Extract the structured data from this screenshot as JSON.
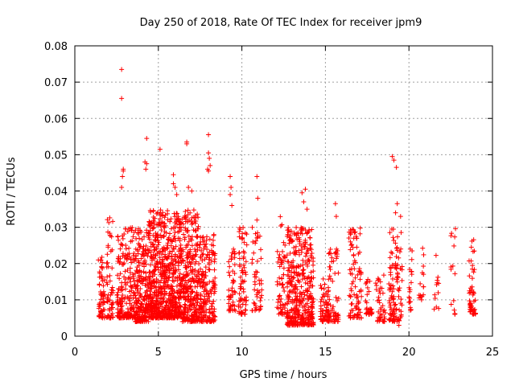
{
  "chart_data": {
    "type": "scatter",
    "title": "Day 250 of 2018, Rate Of TEC Index for receiver jpm9",
    "xlabel": "GPS time / hours",
    "ylabel": "ROTI / TECUs",
    "xlim": [
      0,
      25
    ],
    "ylim": [
      0,
      0.08
    ],
    "xticks": [
      "0",
      "5",
      "10",
      "15",
      "20",
      "25"
    ],
    "yticks": [
      "0",
      "0.01",
      "0.02",
      "0.03",
      "0.04",
      "0.05",
      "0.06",
      "0.07",
      "0.08"
    ],
    "grid": true,
    "marker": "+",
    "color": "#ff0000",
    "clusters": [
      {
        "x_start": 1.4,
        "x_end": 1.8,
        "y_low": 0.005,
        "y_high": 0.022,
        "count": 60
      },
      {
        "x_start": 1.9,
        "x_end": 2.3,
        "y_low": 0.005,
        "y_high": 0.033,
        "count": 60
      },
      {
        "x_start": 2.5,
        "x_end": 3.6,
        "y_low": 0.005,
        "y_high": 0.03,
        "count": 200
      },
      {
        "x_start": 3.6,
        "x_end": 4.4,
        "y_low": 0.004,
        "y_high": 0.03,
        "count": 220
      },
      {
        "x_start": 4.4,
        "x_end": 6.4,
        "y_low": 0.005,
        "y_high": 0.035,
        "count": 700
      },
      {
        "x_start": 6.4,
        "x_end": 7.4,
        "y_low": 0.004,
        "y_high": 0.035,
        "count": 300
      },
      {
        "x_start": 7.4,
        "x_end": 8.4,
        "y_low": 0.004,
        "y_high": 0.028,
        "count": 200
      },
      {
        "x_start": 9.2,
        "x_end": 9.6,
        "y_low": 0.007,
        "y_high": 0.025,
        "count": 50
      },
      {
        "x_start": 9.8,
        "x_end": 10.3,
        "y_low": 0.006,
        "y_high": 0.03,
        "count": 70
      },
      {
        "x_start": 10.6,
        "x_end": 11.2,
        "y_low": 0.007,
        "y_high": 0.03,
        "count": 50
      },
      {
        "x_start": 12.1,
        "x_end": 12.6,
        "y_low": 0.006,
        "y_high": 0.033,
        "count": 60
      },
      {
        "x_start": 12.7,
        "x_end": 14.3,
        "y_low": 0.003,
        "y_high": 0.03,
        "count": 400
      },
      {
        "x_start": 14.7,
        "x_end": 15.2,
        "y_low": 0.004,
        "y_high": 0.016,
        "count": 60
      },
      {
        "x_start": 15.2,
        "x_end": 15.8,
        "y_low": 0.004,
        "y_high": 0.025,
        "count": 60
      },
      {
        "x_start": 16.4,
        "x_end": 17.2,
        "y_low": 0.005,
        "y_high": 0.03,
        "count": 90
      },
      {
        "x_start": 17.4,
        "x_end": 17.8,
        "y_low": 0.006,
        "y_high": 0.016,
        "count": 30
      },
      {
        "x_start": 18.0,
        "x_end": 18.6,
        "y_low": 0.004,
        "y_high": 0.017,
        "count": 40
      },
      {
        "x_start": 18.8,
        "x_end": 19.6,
        "y_low": 0.004,
        "y_high": 0.03,
        "count": 110
      },
      {
        "x_start": 20.0,
        "x_end": 20.2,
        "y_low": 0.007,
        "y_high": 0.03,
        "count": 20
      },
      {
        "x_start": 20.6,
        "x_end": 20.9,
        "y_low": 0.01,
        "y_high": 0.031,
        "count": 15
      },
      {
        "x_start": 21.5,
        "x_end": 21.8,
        "y_low": 0.007,
        "y_high": 0.026,
        "count": 12
      },
      {
        "x_start": 22.5,
        "x_end": 22.8,
        "y_low": 0.006,
        "y_high": 0.031,
        "count": 14
      },
      {
        "x_start": 23.6,
        "x_end": 24.0,
        "y_low": 0.006,
        "y_high": 0.027,
        "count": 50
      }
    ],
    "outliers": [
      {
        "x": 2.8,
        "y": 0.0735
      },
      {
        "x": 2.8,
        "y": 0.0655
      },
      {
        "x": 2.9,
        "y": 0.046
      },
      {
        "x": 2.85,
        "y": 0.044
      },
      {
        "x": 2.8,
        "y": 0.041
      },
      {
        "x": 2.9,
        "y": 0.0455
      },
      {
        "x": 4.3,
        "y": 0.0545
      },
      {
        "x": 4.2,
        "y": 0.048
      },
      {
        "x": 4.25,
        "y": 0.046
      },
      {
        "x": 4.3,
        "y": 0.0475
      },
      {
        "x": 5.1,
        "y": 0.0515
      },
      {
        "x": 5.9,
        "y": 0.0445
      },
      {
        "x": 5.9,
        "y": 0.042
      },
      {
        "x": 6.0,
        "y": 0.041
      },
      {
        "x": 6.1,
        "y": 0.039
      },
      {
        "x": 6.7,
        "y": 0.0535
      },
      {
        "x": 6.7,
        "y": 0.053
      },
      {
        "x": 6.8,
        "y": 0.041
      },
      {
        "x": 7.0,
        "y": 0.04
      },
      {
        "x": 8.0,
        "y": 0.0555
      },
      {
        "x": 8.0,
        "y": 0.0505
      },
      {
        "x": 8.05,
        "y": 0.049
      },
      {
        "x": 7.95,
        "y": 0.046
      },
      {
        "x": 8.0,
        "y": 0.0455
      },
      {
        "x": 8.1,
        "y": 0.047
      },
      {
        "x": 9.3,
        "y": 0.044
      },
      {
        "x": 9.35,
        "y": 0.041
      },
      {
        "x": 9.3,
        "y": 0.039
      },
      {
        "x": 9.4,
        "y": 0.036
      },
      {
        "x": 10.9,
        "y": 0.044
      },
      {
        "x": 10.95,
        "y": 0.038
      },
      {
        "x": 10.9,
        "y": 0.032
      },
      {
        "x": 13.6,
        "y": 0.0395
      },
      {
        "x": 13.8,
        "y": 0.0405
      },
      {
        "x": 13.7,
        "y": 0.037
      },
      {
        "x": 13.9,
        "y": 0.035
      },
      {
        "x": 15.6,
        "y": 0.0365
      },
      {
        "x": 15.65,
        "y": 0.033
      },
      {
        "x": 19.0,
        "y": 0.0495
      },
      {
        "x": 19.1,
        "y": 0.0485
      },
      {
        "x": 19.25,
        "y": 0.0465
      },
      {
        "x": 19.2,
        "y": 0.034
      },
      {
        "x": 19.5,
        "y": 0.033
      },
      {
        "x": 19.3,
        "y": 0.0365
      },
      {
        "x": 19.4,
        "y": 0.003
      },
      {
        "x": 18.3,
        "y": 0.0045
      }
    ]
  }
}
